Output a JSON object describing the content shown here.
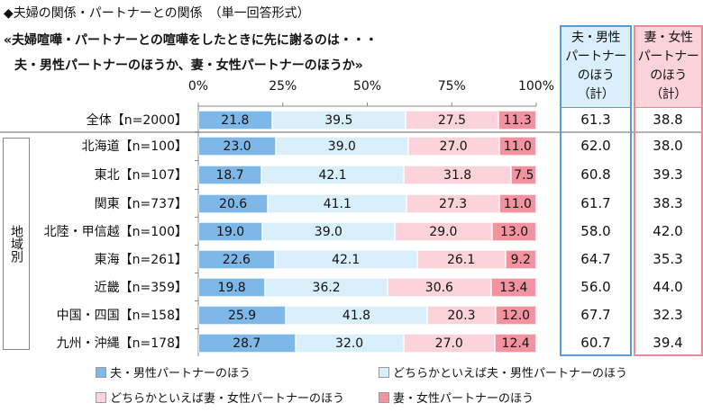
{
  "header": {
    "title": "◆夫婦の関係・パートナーとの関係　（単一回答形式）",
    "question_line1": "«夫婦喧嘩・パートナーとの喧嘩をしたときに先に謝るのは・・・",
    "question_line2": "夫・男性パートナーのほうか、妻・女性パートナーのほうか»"
  },
  "group_label": "地域別",
  "chart_data": {
    "type": "bar",
    "orientation": "horizontal",
    "stacked": true,
    "xlim": [
      0,
      100
    ],
    "x_ticks": [
      "0%",
      "25%",
      "50%",
      "75%",
      "100%"
    ],
    "categories": [
      "全体【n=2000】",
      "北海道【n=100】",
      "東北【n=107】",
      "関東【n=737】",
      "北陸・甲信越【n=100】",
      "東海【n=261】",
      "近畿【n=359】",
      "中国・四国【n=158】",
      "九州・沖縄【n=178】"
    ],
    "series": [
      {
        "name": "夫・男性パートナーのほう",
        "color": "#7db8e8",
        "values": [
          21.8,
          23.0,
          18.7,
          20.6,
          19.0,
          22.6,
          19.8,
          25.9,
          28.7
        ]
      },
      {
        "name": "どちらかといえば夫・男性パートナーのほう",
        "color": "#d9effb",
        "values": [
          39.5,
          39.0,
          42.1,
          41.1,
          39.0,
          42.1,
          36.2,
          41.8,
          32.0
        ]
      },
      {
        "name": "どちらかといえば妻・女性パートナーのほう",
        "color": "#fcd3da",
        "values": [
          27.5,
          27.0,
          31.8,
          27.3,
          29.0,
          26.1,
          30.6,
          20.3,
          27.0
        ]
      },
      {
        "name": "妻・女性パートナーのほう",
        "color": "#f2939f",
        "values": [
          11.3,
          11.0,
          7.5,
          11.0,
          13.0,
          9.2,
          13.4,
          12.0,
          12.4
        ]
      }
    ],
    "legend": "bottom"
  },
  "summary": {
    "husband": {
      "header": [
        "夫・男性",
        "パートナー",
        "のほう",
        "（計）"
      ],
      "color": "#d9effb",
      "border": "#5b9bd5",
      "values": [
        "61.3",
        "62.0",
        "60.8",
        "61.7",
        "58.0",
        "64.7",
        "56.0",
        "67.7",
        "60.7"
      ]
    },
    "wife": {
      "header": [
        "妻・女性",
        "パートナー",
        "のほう",
        "（計）"
      ],
      "color": "#fcd3da",
      "border": "#e88a9a",
      "values": [
        "38.8",
        "38.0",
        "39.3",
        "38.3",
        "42.0",
        "35.3",
        "44.0",
        "32.3",
        "39.4"
      ]
    }
  }
}
